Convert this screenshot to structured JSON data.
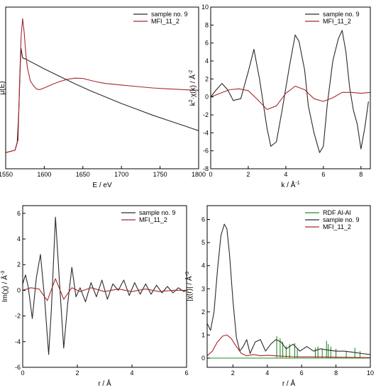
{
  "colors": {
    "black": "#2a2a2a",
    "red": "#a8282a",
    "green": "#2a8a2a",
    "axis": "#000000"
  },
  "chart_data": [
    {
      "type": "line",
      "xlabel": "E / eV",
      "ylabel": "μ(E)",
      "xlim": [
        1550,
        1800
      ],
      "xticks": [
        1550,
        1600,
        1650,
        1700,
        1750,
        1800
      ],
      "yticks": [],
      "legend": "top-right",
      "series": [
        {
          "name": "sample no. 9",
          "color": "black",
          "x": [
            1550,
            1562,
            1565,
            1567,
            1569,
            1570,
            1572,
            1576,
            1580,
            1590,
            1600,
            1620,
            1640,
            1660,
            1680,
            1700,
            1720,
            1740,
            1760,
            1780,
            1800
          ],
          "y": [
            0.04,
            0.06,
            0.13,
            0.4,
            0.82,
            0.94,
            0.86,
            0.85,
            0.835,
            0.8,
            0.765,
            0.7,
            0.635,
            0.575,
            0.52,
            0.465,
            0.415,
            0.365,
            0.32,
            0.275,
            0.23
          ]
        },
        {
          "name": "MFI_11_2",
          "color": "red",
          "x": [
            1550,
            1562,
            1564,
            1566,
            1568,
            1570,
            1572,
            1574,
            1576,
            1578,
            1582,
            1586,
            1590,
            1594,
            1600,
            1610,
            1620,
            1630,
            1640,
            1650,
            1660,
            1670,
            1680,
            1700,
            1720,
            1740,
            1760,
            1780,
            1800
          ],
          "y": [
            0.04,
            0.06,
            0.1,
            0.15,
            0.65,
            1.05,
            1.2,
            1.08,
            0.9,
            0.78,
            0.66,
            0.62,
            0.59,
            0.585,
            0.6,
            0.63,
            0.655,
            0.675,
            0.685,
            0.682,
            0.665,
            0.65,
            0.638,
            0.625,
            0.612,
            0.6,
            0.592,
            0.585,
            0.58
          ]
        }
      ]
    },
    {
      "type": "line",
      "xlabel": "k / Å",
      "xlabel_sup": "-1",
      "ylabel_parts": [
        "k",
        "2",
        "·χ(k) / Å",
        "-2"
      ],
      "xlim": [
        0,
        8.5
      ],
      "ylim": [
        -8,
        10
      ],
      "xticks": [
        0,
        2,
        4,
        6,
        8
      ],
      "yticks": [
        -8,
        -6,
        -4,
        -2,
        0,
        2,
        4,
        6,
        8,
        10
      ],
      "legend": "top-right",
      "series": [
        {
          "name": "sample no. 9",
          "color": "black",
          "x": [
            0,
            0.3,
            0.6,
            0.9,
            1.2,
            1.6,
            2.0,
            2.3,
            2.6,
            3.0,
            3.2,
            3.5,
            3.8,
            4.2,
            4.5,
            4.7,
            5.0,
            5.2,
            5.5,
            5.8,
            6.0,
            6.2,
            6.5,
            6.8,
            7.0,
            7.2,
            7.4,
            7.6,
            7.8,
            8.0,
            8.2,
            8.4
          ],
          "y": [
            0,
            0.8,
            1.5,
            0.8,
            -0.4,
            -0.2,
            2.8,
            5.3,
            2.0,
            -3.5,
            -5.5,
            -5.0,
            -1.5,
            3.5,
            6.9,
            6.2,
            3.0,
            -1.0,
            -4.0,
            -6.2,
            -5.5,
            -1.0,
            4.0,
            6.5,
            7.4,
            5.0,
            1.0,
            -1.5,
            -3.0,
            -5.8,
            -3.5,
            -0.5
          ]
        },
        {
          "name": "MFI_11_2",
          "color": "red",
          "x": [
            0,
            0.5,
            1.0,
            1.5,
            2.0,
            2.5,
            3.0,
            3.5,
            4.0,
            4.5,
            5.0,
            5.5,
            6.0,
            6.5,
            7.0,
            7.5,
            8.0,
            8.5
          ],
          "y": [
            0,
            0.4,
            0.8,
            0.9,
            0.7,
            -0.3,
            -1.4,
            -1.0,
            0.4,
            1.2,
            0.8,
            -0.2,
            -0.5,
            -0.1,
            0.5,
            0.5,
            0.4,
            0.5
          ]
        }
      ]
    },
    {
      "type": "line",
      "xlabel": "r / Å",
      "ylabel_parts": [
        "Im(χ) / Å",
        "-3"
      ],
      "xlim": [
        0,
        6
      ],
      "ylim": [
        -6,
        6.6
      ],
      "xticks": [
        0,
        2,
        4,
        6
      ],
      "yticks": [
        -6,
        -4,
        -2,
        0,
        2,
        4,
        6
      ],
      "legend": "top-right",
      "series": [
        {
          "name": "sample no. 9",
          "color": "black",
          "x": [
            0,
            0.1,
            0.2,
            0.35,
            0.5,
            0.65,
            0.8,
            0.95,
            1.05,
            1.2,
            1.35,
            1.5,
            1.65,
            1.8,
            1.95,
            2.1,
            2.3,
            2.5,
            2.7,
            2.9,
            3.1,
            3.3,
            3.5,
            3.7,
            3.9,
            4.1,
            4.3,
            4.5,
            4.7,
            4.9,
            5.1,
            5.3,
            5.5,
            5.7,
            5.9,
            6.0
          ],
          "y": [
            0.5,
            1.2,
            0.3,
            -2.2,
            1.0,
            2.8,
            -0.6,
            -5.0,
            -1.5,
            5.7,
            0.5,
            -4.5,
            -1.0,
            1.8,
            -0.5,
            0.2,
            -0.9,
            0.6,
            -0.5,
            0.8,
            -0.7,
            0.5,
            0.0,
            0.8,
            -0.4,
            0.6,
            -0.3,
            0.5,
            -0.3,
            0.4,
            -0.2,
            0.3,
            -0.2,
            0.2,
            -0.1,
            0.0
          ]
        },
        {
          "name": "MFI_11_2",
          "color": "red",
          "x": [
            0,
            0.3,
            0.6,
            0.9,
            1.2,
            1.5,
            1.8,
            2.1,
            2.5,
            3.0,
            3.5,
            4.0,
            4.5,
            5.0,
            5.5,
            6.0
          ],
          "y": [
            0.0,
            0.2,
            0.1,
            -0.8,
            0.9,
            -0.7,
            0.2,
            -0.1,
            0.2,
            -0.1,
            0.1,
            -0.1,
            0.1,
            -0.1,
            0.0,
            0.0
          ]
        }
      ]
    },
    {
      "type": "line",
      "xlabel": "r / Å",
      "ylabel_parts": [
        "|χ(r)| / Å",
        "-3"
      ],
      "xlim": [
        0.5,
        10
      ],
      "ylim": [
        -0.4,
        6.6
      ],
      "xticks": [
        2,
        4,
        6,
        8,
        10
      ],
      "yticks": [
        0,
        1,
        2,
        3,
        4,
        5,
        6
      ],
      "legend": "top-right",
      "series": [
        {
          "name": "RDF Al-Al",
          "color": "green",
          "kind": "sticks",
          "x": [
            4.55,
            4.75,
            4.9,
            5.1,
            5.3,
            5.6,
            5.75,
            6.8,
            6.95,
            7.2,
            7.45,
            7.55,
            7.7,
            8.0,
            8.6,
            9.1,
            9.4
          ],
          "y": [
            0.95,
            0.85,
            0.7,
            0.5,
            0.6,
            0.65,
            0.4,
            0.45,
            0.5,
            0.4,
            0.75,
            0.6,
            0.5,
            0.4,
            0.3,
            0.45,
            0.3
          ]
        },
        {
          "name": "sample no. 9",
          "color": "black",
          "x": [
            0.5,
            0.7,
            0.9,
            1.1,
            1.3,
            1.5,
            1.65,
            1.8,
            2.0,
            2.2,
            2.4,
            2.6,
            2.8,
            3.0,
            3.3,
            3.6,
            3.9,
            4.2,
            4.5,
            4.8,
            5.1,
            5.5,
            5.9,
            6.3,
            6.7,
            7.1,
            7.5,
            8.0,
            8.5,
            9.0,
            9.5,
            10.0
          ],
          "y": [
            1.5,
            1.2,
            2.0,
            3.8,
            5.3,
            5.8,
            5.6,
            4.5,
            2.5,
            0.9,
            0.3,
            0.5,
            0.8,
            0.2,
            0.7,
            0.8,
            0.3,
            0.6,
            0.8,
            0.7,
            0.4,
            0.6,
            0.3,
            0.5,
            0.3,
            0.4,
            0.35,
            0.3,
            0.3,
            0.25,
            0.2,
            0.15
          ]
        },
        {
          "name": "MFI_11_2",
          "color": "red",
          "x": [
            0.5,
            0.8,
            1.1,
            1.4,
            1.65,
            1.9,
            2.2,
            2.5,
            2.8,
            3.2,
            3.6,
            4.0,
            4.5,
            5.0,
            5.5,
            6.0,
            7.0,
            8.0,
            9.0,
            10.0
          ],
          "y": [
            0.1,
            0.3,
            0.7,
            0.95,
            1.0,
            0.85,
            0.5,
            0.2,
            0.1,
            0.15,
            0.1,
            0.12,
            0.1,
            0.08,
            0.06,
            0.05,
            0.05,
            0.04,
            0.03,
            0.02
          ]
        }
      ]
    }
  ]
}
